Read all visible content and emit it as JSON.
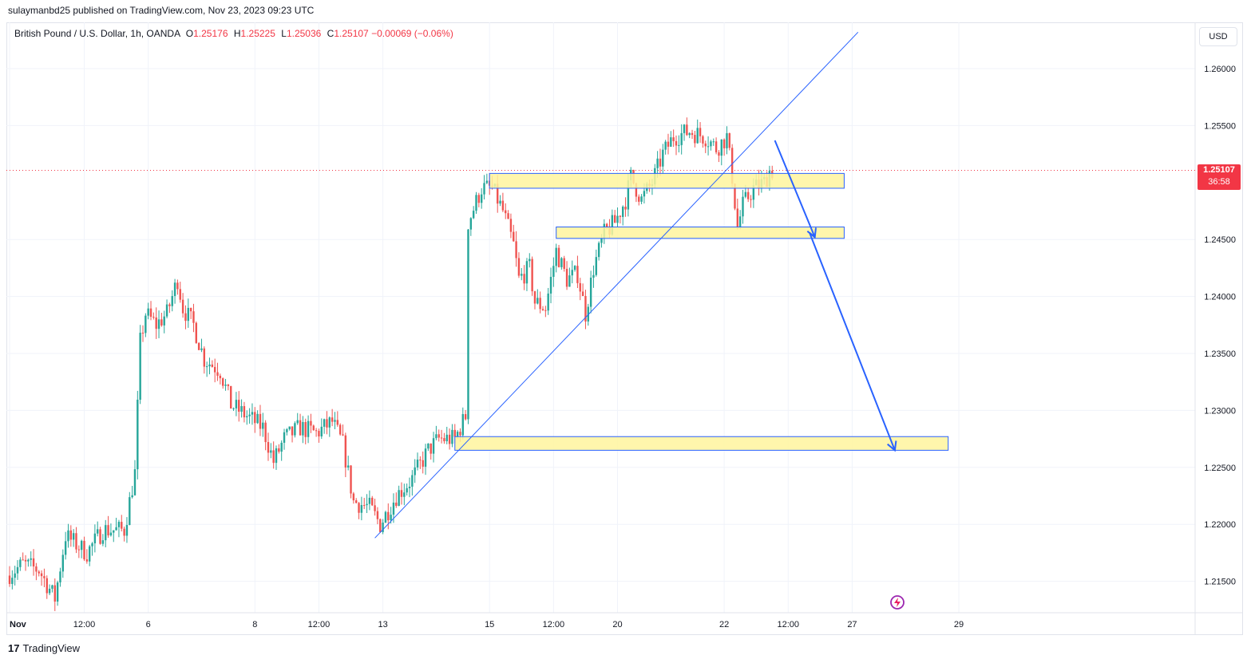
{
  "header": {
    "published": "sulaymanbd25 published on TradingView.com, Nov 23, 2023 09:23 UTC"
  },
  "legend": {
    "symbol": "British Pound / U.S. Dollar, 1h, OANDA",
    "o_label": "O",
    "o_value": "1.25176",
    "h_label": "H",
    "h_value": "1.25225",
    "l_label": "L",
    "l_value": "1.25036",
    "c_label": "C",
    "c_value": "1.25107",
    "change": "−0.00069 (−0.06%)"
  },
  "currency": "USD",
  "price_tag": {
    "price": "1.25107",
    "countdown": "36:58"
  },
  "footer": {
    "brand": "TradingView"
  },
  "colors": {
    "up": "#26a69a",
    "down": "#ef5350",
    "zone_fill": "#fff59d",
    "zone_border": "#2962ff",
    "trendline": "#2962ff",
    "arrow": "#2962ff",
    "price_line": "#f23645"
  },
  "chart_data": {
    "type": "candlestick",
    "title": "",
    "instrument": "GBPUSD",
    "timeframe": "1h",
    "ylim": [
      1.2115,
      1.2635
    ],
    "y_ticks": [
      {
        "value": 1.26,
        "label": "1.26000"
      },
      {
        "value": 1.255,
        "label": "1.25500"
      },
      {
        "value": 1.245,
        "label": "1.24500"
      },
      {
        "value": 1.24,
        "label": "1.24000"
      },
      {
        "value": 1.235,
        "label": "1.23500"
      },
      {
        "value": 1.23,
        "label": "1.23000"
      },
      {
        "value": 1.225,
        "label": "1.22500"
      },
      {
        "value": 1.22,
        "label": "1.22000"
      },
      {
        "value": 1.215,
        "label": "1.21500"
      }
    ],
    "x_ticks": [
      {
        "t": 0,
        "label": "Nov",
        "bold": true
      },
      {
        "t": 28,
        "label": "12:00"
      },
      {
        "t": 52,
        "label": "6"
      },
      {
        "t": 92,
        "label": "8"
      },
      {
        "t": 116,
        "label": "12:00"
      },
      {
        "t": 140,
        "label": "13"
      },
      {
        "t": 180,
        "label": "15"
      },
      {
        "t": 204,
        "label": "12:00"
      },
      {
        "t": 228,
        "label": "20"
      },
      {
        "t": 268,
        "label": "22"
      },
      {
        "t": 292,
        "label": "12:00"
      },
      {
        "t": 316,
        "label": "27"
      },
      {
        "t": 356,
        "label": "29"
      }
    ],
    "last_price": 1.25107,
    "series_path": [
      [
        0,
        1.2155
      ],
      [
        6,
        1.2165
      ],
      [
        12,
        1.216
      ],
      [
        18,
        1.2135
      ],
      [
        22,
        1.219
      ],
      [
        30,
        1.2175
      ],
      [
        36,
        1.2195
      ],
      [
        44,
        1.2195
      ],
      [
        48,
        1.2245
      ],
      [
        50,
        1.236
      ],
      [
        52,
        1.2385
      ],
      [
        56,
        1.2375
      ],
      [
        60,
        1.2385
      ],
      [
        64,
        1.2415
      ],
      [
        66,
        1.239
      ],
      [
        70,
        1.2375
      ],
      [
        74,
        1.2345
      ],
      [
        80,
        1.2335
      ],
      [
        84,
        1.2305
      ],
      [
        90,
        1.2295
      ],
      [
        96,
        1.2285
      ],
      [
        100,
        1.2255
      ],
      [
        104,
        1.2275
      ],
      [
        110,
        1.2285
      ],
      [
        116,
        1.228
      ],
      [
        122,
        1.229
      ],
      [
        126,
        1.227
      ],
      [
        130,
        1.222
      ],
      [
        136,
        1.2215
      ],
      [
        140,
        1.22
      ],
      [
        146,
        1.2225
      ],
      [
        152,
        1.224
      ],
      [
        158,
        1.2265
      ],
      [
        162,
        1.2275
      ],
      [
        168,
        1.2275
      ],
      [
        172,
        1.2295
      ],
      [
        173,
        1.2465
      ],
      [
        178,
        1.2495
      ],
      [
        182,
        1.2495
      ],
      [
        186,
        1.2475
      ],
      [
        190,
        1.2445
      ],
      [
        192,
        1.2415
      ],
      [
        196,
        1.2425
      ],
      [
        198,
        1.2395
      ],
      [
        202,
        1.239
      ],
      [
        206,
        1.244
      ],
      [
        210,
        1.2415
      ],
      [
        214,
        1.242
      ],
      [
        217,
        1.2385
      ],
      [
        220,
        1.2425
      ],
      [
        224,
        1.2455
      ],
      [
        228,
        1.2465
      ],
      [
        232,
        1.2485
      ],
      [
        234,
        1.2505
      ],
      [
        238,
        1.2485
      ],
      [
        242,
        1.25
      ],
      [
        246,
        1.2525
      ],
      [
        250,
        1.254
      ],
      [
        256,
        1.2545
      ],
      [
        262,
        1.254
      ],
      [
        266,
        1.253
      ],
      [
        270,
        1.254
      ],
      [
        272,
        1.2505
      ],
      [
        274,
        1.246
      ],
      [
        276,
        1.248
      ],
      [
        280,
        1.2495
      ],
      [
        284,
        1.25
      ],
      [
        286,
        1.251
      ]
    ],
    "annotations": {
      "zones": [
        {
          "t_start": 167,
          "t_end": 352,
          "y_top": 1.2277,
          "y_bottom": 1.2265
        },
        {
          "t_start": 180,
          "t_end": 313,
          "y_top": 1.2508,
          "y_bottom": 1.2495
        },
        {
          "t_start": 205,
          "t_end": 313,
          "y_top": 1.2461,
          "y_bottom": 1.2451
        }
      ],
      "trendline": {
        "from": [
          137,
          1.2188
        ],
        "to": [
          288,
          1.2558
        ]
      },
      "projection": [
        [
          287,
          1.2537
        ],
        [
          302,
          1.2452
        ],
        [
          300,
          1.2456
        ],
        [
          332,
          1.2265
        ]
      ]
    }
  }
}
